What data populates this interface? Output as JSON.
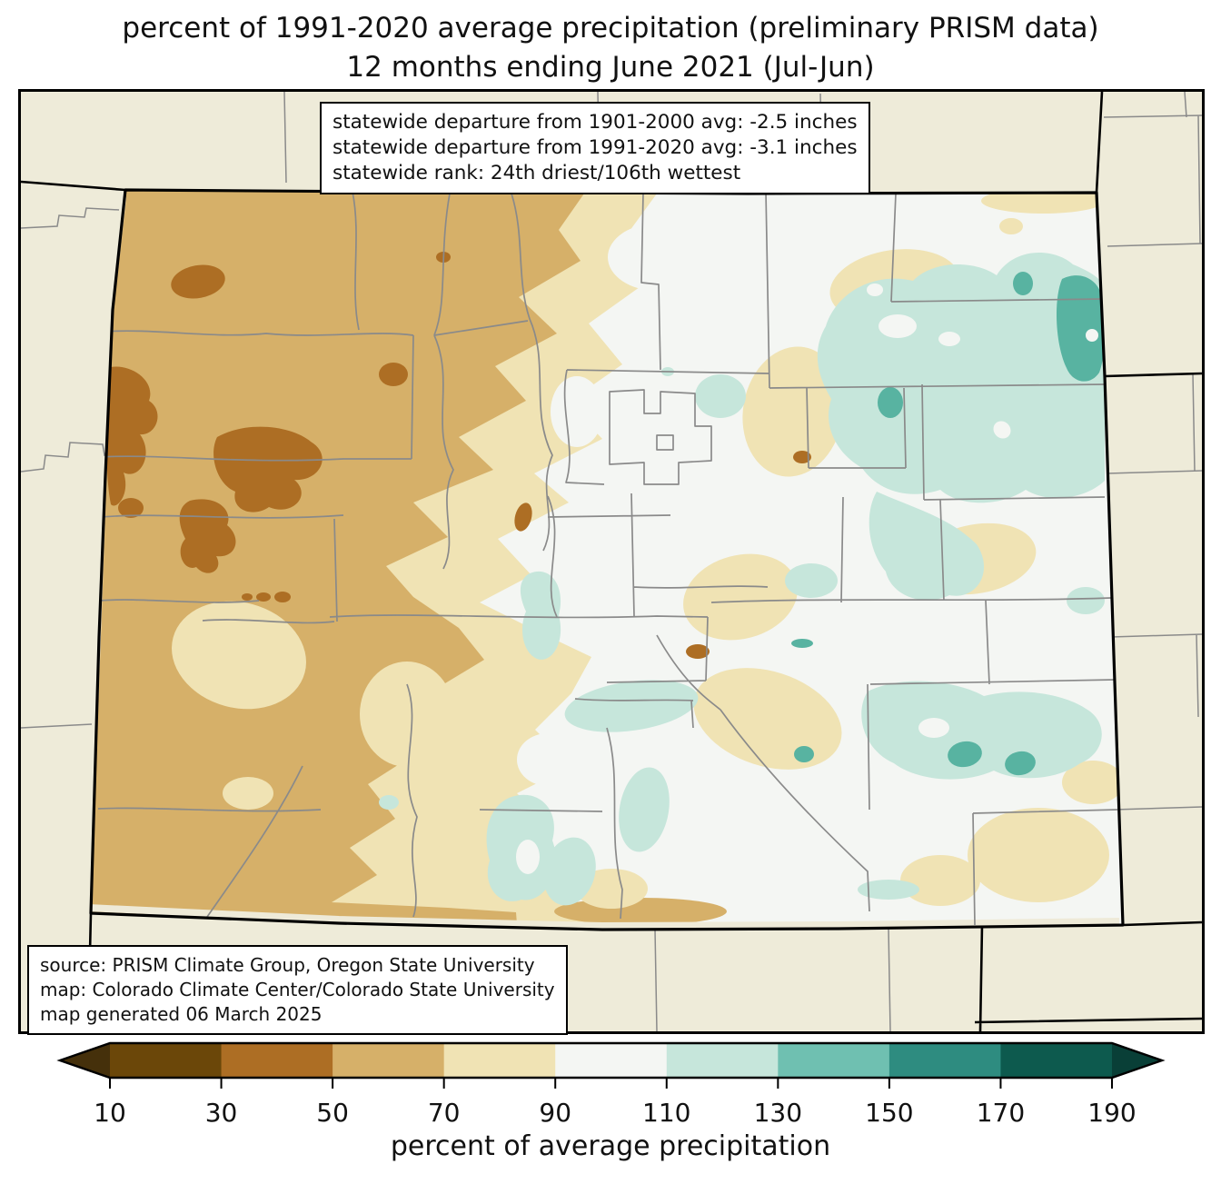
{
  "title": {
    "line1": "percent of 1991-2020 average precipitation (preliminary PRISM data)",
    "line2": "12 months ending June 2021 (Jul-Jun)"
  },
  "stats_box": {
    "line1": "statewide departure from 1901-2000 avg: -2.5 inches",
    "line2": "statewide departure from 1991-2020 avg: -3.1 inches",
    "line3": "statewide rank: 24th driest/106th wettest"
  },
  "source_box": {
    "line1": "source: PRISM Climate Group, Oregon State University",
    "line2": "map: Colorado Climate Center/Colorado State University",
    "line3": "map generated 06 March 2025"
  },
  "colorbar": {
    "label": "percent of average precipitation",
    "ticks": [
      "10",
      "30",
      "50",
      "70",
      "90",
      "110",
      "130",
      "150",
      "170",
      "190"
    ],
    "bin_colors": [
      "#6b4709",
      "#ad6e24",
      "#d6b069",
      "#f0e3b4",
      "#f4f6f3",
      "#c6e6db",
      "#6fc0b1",
      "#2e8c80",
      "#0d5a4e"
    ],
    "arrow_low_color": "#45300b",
    "arrow_high_color": "#093f37"
  },
  "map": {
    "palette": {
      "out": "#eeebd9",
      "w90": "#f4f6f3",
      "cream": "#f0e3b4",
      "tan": "#d6b069",
      "brown": "#ad6e24",
      "tealL": "#c6e6db",
      "tealM": "#58b3a1",
      "county": "#8a8a8a",
      "state": "#000000",
      "strip": "#eeead8"
    }
  }
}
